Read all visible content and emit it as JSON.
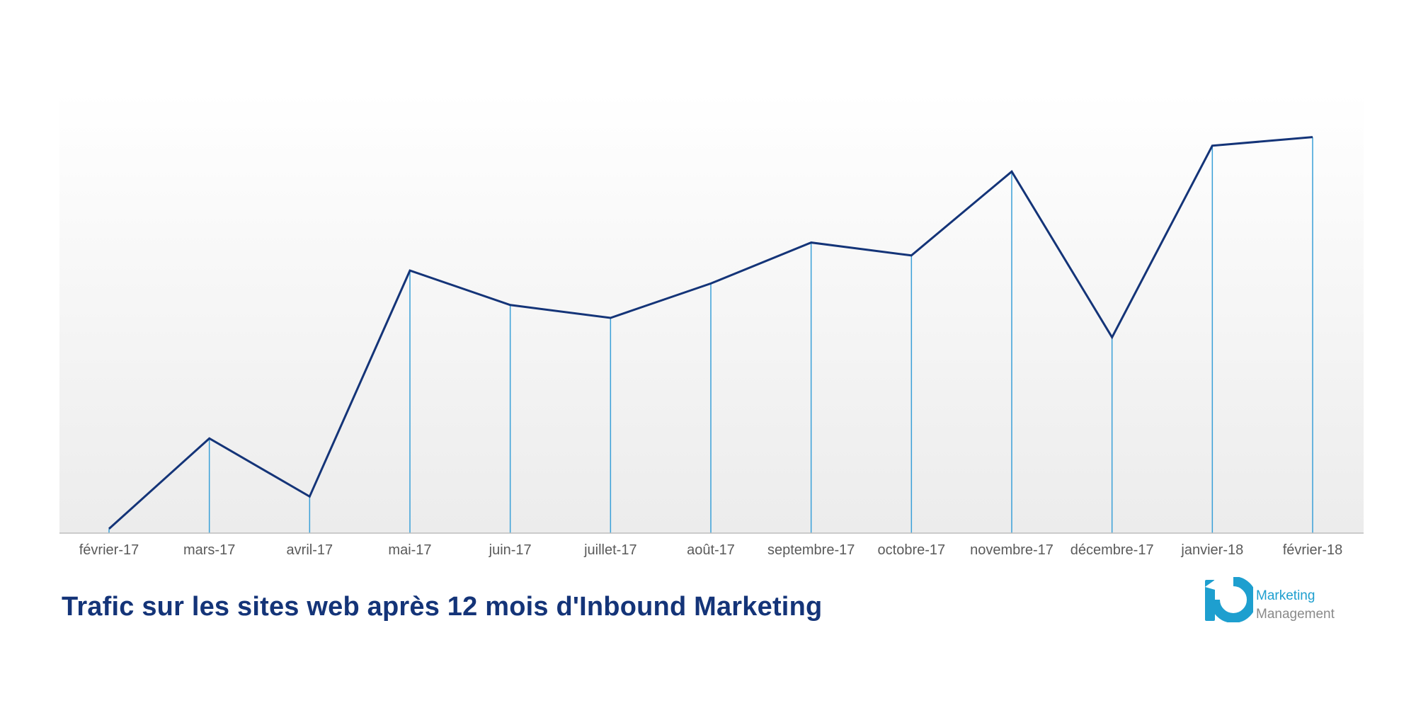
{
  "chart_data": {
    "type": "area",
    "title": "Trafic sur les sites web après 12 mois d'Inbound Marketing",
    "xlabel": "",
    "ylabel": "",
    "categories": [
      "février-17",
      "mars-17",
      "avril-17",
      "mai-17",
      "juin-17",
      "juillet-17",
      "août-17",
      "septembre-17",
      "octobre-17",
      "novembre-17",
      "décembre-17",
      "janvier-18",
      "février-18"
    ],
    "series": [
      {
        "values": [
          1,
          22,
          8.5,
          61,
          53,
          50,
          58,
          67.5,
          64.5,
          84,
          45.5,
          90,
          92
        ]
      }
    ],
    "ylim": [
      0,
      100
    ],
    "grid": false,
    "legend": "none",
    "colors": {
      "line": "#143478",
      "drop_lines": "#3aa0d8",
      "fill_top": "#ffffff",
      "fill_bottom": "#ececec",
      "baseline": "#bdbdbd"
    }
  },
  "logo": {
    "line1": "Marketing",
    "line2": "Management",
    "color1": "#1e9fcf",
    "color2": "#8a8a8a",
    "mark_color": "#1e9fcf"
  }
}
